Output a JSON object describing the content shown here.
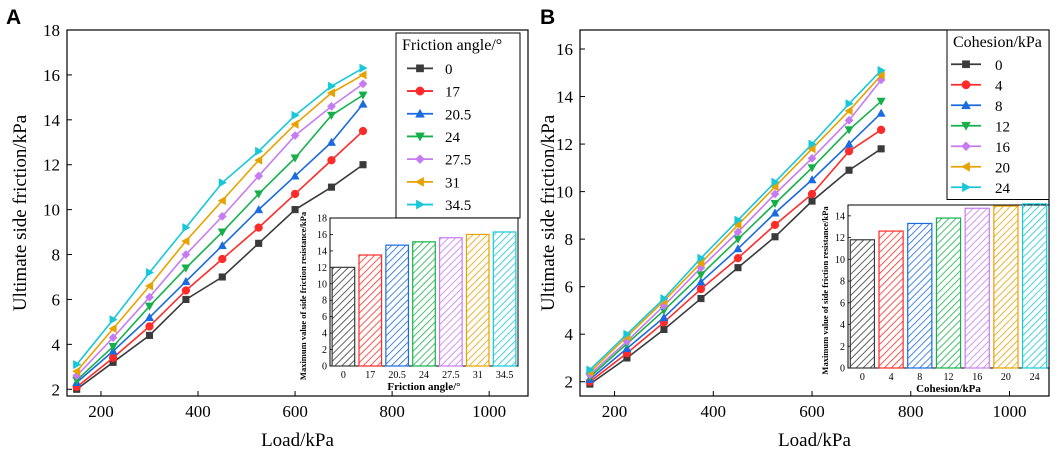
{
  "figure": {
    "panel_labels": [
      "A",
      "B"
    ]
  },
  "chart_data": [
    {
      "type": "line",
      "panel": "A",
      "xlabel": "Load/kPa",
      "ylabel": "Ultimate side friction/kPa",
      "xlim": [
        130,
        1080
      ],
      "ylim": [
        1.7,
        18
      ],
      "xticks": [
        200,
        400,
        600,
        800,
        1000
      ],
      "yticks": [
        2,
        4,
        6,
        8,
        10,
        12,
        14,
        16,
        18
      ],
      "x": [
        150,
        225,
        300,
        375,
        450,
        525,
        600,
        675,
        740
      ],
      "legend_title": "Friction angle/°",
      "series": [
        {
          "name": "0",
          "color": "#3a3a3a",
          "marker": "square",
          "values": [
            2.0,
            3.2,
            4.4,
            6.0,
            7.0,
            8.5,
            10.0,
            11.0,
            12.0
          ]
        },
        {
          "name": "17",
          "color": "#ff2a2a",
          "marker": "circle",
          "values": [
            2.1,
            3.4,
            4.8,
            6.4,
            7.8,
            9.2,
            10.7,
            12.2,
            13.5
          ]
        },
        {
          "name": "20.5",
          "color": "#1a6be0",
          "marker": "triangle-up",
          "values": [
            2.3,
            3.7,
            5.2,
            6.8,
            8.4,
            10.0,
            11.5,
            13.0,
            14.7
          ]
        },
        {
          "name": "24",
          "color": "#16b04a",
          "marker": "triangle-down",
          "values": [
            2.4,
            3.9,
            5.7,
            7.4,
            9.0,
            10.7,
            12.3,
            14.2,
            15.1
          ]
        },
        {
          "name": "27.5",
          "color": "#c77bf0",
          "marker": "diamond",
          "values": [
            2.6,
            4.3,
            6.1,
            8.0,
            9.7,
            11.5,
            13.3,
            14.6,
            15.6
          ]
        },
        {
          "name": "31",
          "color": "#e8a200",
          "marker": "triangle-left",
          "values": [
            2.8,
            4.7,
            6.6,
            8.6,
            10.4,
            12.2,
            13.8,
            15.2,
            16.0
          ]
        },
        {
          "name": "34.5",
          "color": "#18c8d8",
          "marker": "triangle-right",
          "values": [
            3.1,
            5.1,
            7.2,
            9.2,
            11.2,
            12.6,
            14.2,
            15.5,
            16.3
          ]
        }
      ],
      "inset": {
        "type": "bar",
        "xlabel": "Friction angle/°",
        "ylabel": "Maximum value of side friction resistance/kPa",
        "ylim": [
          0,
          18
        ],
        "yticks": [
          0,
          2,
          4,
          6,
          8,
          10,
          12,
          14,
          16,
          18
        ],
        "categories": [
          "0",
          "17",
          "20.5",
          "24",
          "27.5",
          "31",
          "34.5"
        ],
        "values": [
          12.0,
          13.5,
          14.7,
          15.1,
          15.6,
          16.0,
          16.3
        ]
      }
    },
    {
      "type": "line",
      "panel": "B",
      "xlabel": "Load/kPa",
      "ylabel": "Ultimate side friction/kPa",
      "xlim": [
        130,
        1080
      ],
      "ylim": [
        1.4,
        16.8
      ],
      "xticks": [
        200,
        400,
        600,
        800,
        1000
      ],
      "yticks": [
        2,
        4,
        6,
        8,
        10,
        12,
        14,
        16
      ],
      "x": [
        150,
        225,
        300,
        375,
        450,
        525,
        600,
        675,
        740
      ],
      "legend_title": "Cohesion/kPa",
      "series": [
        {
          "name": "0",
          "color": "#3a3a3a",
          "marker": "square",
          "values": [
            1.9,
            3.0,
            4.2,
            5.5,
            6.8,
            8.1,
            9.6,
            10.9,
            11.8
          ]
        },
        {
          "name": "4",
          "color": "#ff2a2a",
          "marker": "circle",
          "values": [
            2.0,
            3.2,
            4.5,
            5.9,
            7.2,
            8.6,
            9.9,
            11.7,
            12.6
          ]
        },
        {
          "name": "8",
          "color": "#1a6be0",
          "marker": "triangle-up",
          "values": [
            2.1,
            3.4,
            4.7,
            6.2,
            7.6,
            9.1,
            10.5,
            12.0,
            13.3
          ]
        },
        {
          "name": "12",
          "color": "#16b04a",
          "marker": "triangle-down",
          "values": [
            2.2,
            3.6,
            5.0,
            6.5,
            8.0,
            9.5,
            11.0,
            12.6,
            13.8
          ]
        },
        {
          "name": "16",
          "color": "#c77bf0",
          "marker": "diamond",
          "values": [
            2.3,
            3.7,
            5.2,
            6.8,
            8.3,
            9.9,
            11.4,
            13.0,
            14.7
          ]
        },
        {
          "name": "20",
          "color": "#e8a200",
          "marker": "triangle-left",
          "values": [
            2.4,
            3.9,
            5.4,
            7.0,
            8.6,
            10.2,
            11.8,
            13.4,
            14.9
          ]
        },
        {
          "name": "24",
          "color": "#18c8d8",
          "marker": "triangle-right",
          "values": [
            2.5,
            4.0,
            5.5,
            7.2,
            8.8,
            10.4,
            12.0,
            13.7,
            15.1
          ]
        }
      ],
      "inset": {
        "type": "bar",
        "xlabel": "Cohesion/kPa",
        "ylabel": "Maximum value of side friction resistance/kPa",
        "ylim": [
          0,
          15
        ],
        "yticks": [
          0,
          2,
          4,
          6,
          8,
          10,
          12,
          14
        ],
        "categories": [
          "0",
          "4",
          "8",
          "12",
          "16",
          "20",
          "24"
        ],
        "values": [
          11.8,
          12.6,
          13.3,
          13.8,
          14.7,
          14.9,
          15.1
        ]
      }
    }
  ]
}
